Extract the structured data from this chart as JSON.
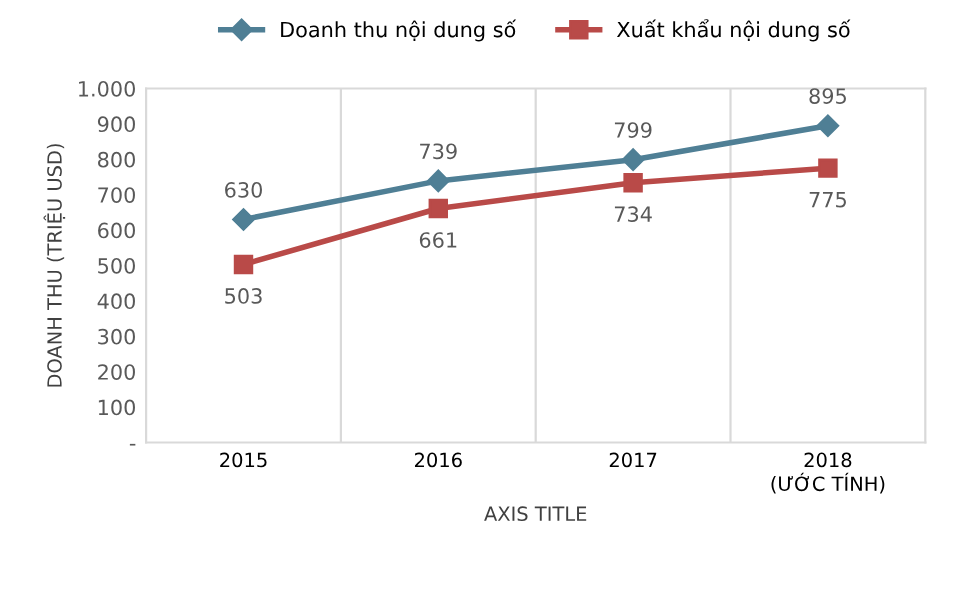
{
  "chart_data": {
    "type": "line",
    "xlabel": "AXIS TITLE",
    "ylabel": "DOANH THU (TRIỆU USD)",
    "categories": [
      "2015",
      "2016",
      "2017",
      "2018\n(ƯỚC TÍNH)"
    ],
    "series": [
      {
        "name": "Doanh thu nội dung số",
        "color": "#4f7f95",
        "marker": "diamond",
        "values": [
          630,
          739,
          799,
          895
        ]
      },
      {
        "name": "Xuất khẩu nội dung số",
        "color": "#b94a48",
        "marker": "square",
        "values": [
          503,
          661,
          734,
          775
        ]
      }
    ],
    "ylim": [
      0,
      1000
    ],
    "yticks": [
      {
        "value": 0,
        "label": "-"
      },
      100,
      200,
      300,
      400,
      500,
      600,
      700,
      800,
      900,
      {
        "value": 1000,
        "label": "1.000"
      }
    ],
    "grid": "x",
    "legend": "top",
    "data_labels": true,
    "line_style": "solid"
  }
}
